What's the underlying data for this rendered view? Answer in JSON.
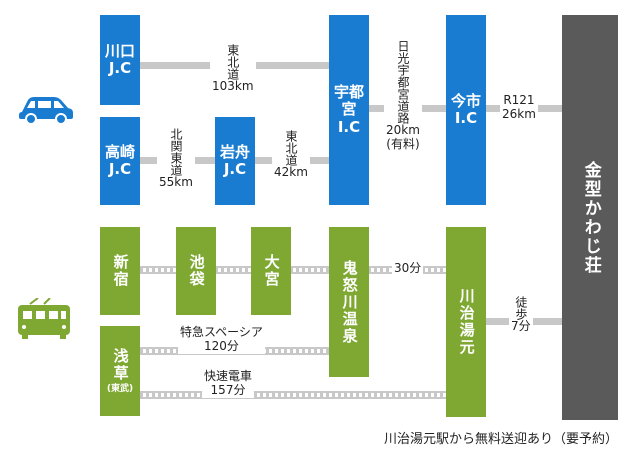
{
  "nodes": {
    "kawaguchi": {
      "l1": "川口",
      "l2": "J.C"
    },
    "takasaki": {
      "l1": "高崎",
      "l2": "J.C"
    },
    "iwafune": {
      "l1": "岩舟",
      "l2": "J.C"
    },
    "utsunomiya": {
      "l1": "宇都宮",
      "l2": "I.C"
    },
    "imaichi": {
      "l1": "今市",
      "l2": "I.C"
    },
    "kinugawa_hotel": "金型かわじ荘",
    "shinjuku": "新宿",
    "ikebukuro": "池袋",
    "omiya": "大宮",
    "kinugawa_onsen": "鬼怒川温泉",
    "kawaji_yumoto": "川治湯元",
    "asakusa": {
      "name": "浅草",
      "sub": "(東武)"
    }
  },
  "routes": {
    "tohoku_main": {
      "name": "東北道",
      "dist": "103km"
    },
    "kitakanto": {
      "name": "北関東道",
      "dist": "55km"
    },
    "tohoku_sub": {
      "name": "東北道",
      "dist": "42km"
    },
    "nikko": {
      "name": "日光宇都宮道路",
      "dist": "20km",
      "note": "(有料)"
    },
    "r121": {
      "name": "R121",
      "dist": "26km"
    },
    "rail_kinugawa": {
      "time": "30分"
    },
    "walk": {
      "name": "徒歩",
      "time": "7分"
    },
    "spacia": {
      "name": "特急スペーシア",
      "time": "120分"
    },
    "rapid": {
      "name": "快速電車",
      "time": "157分"
    }
  },
  "footer": {
    "note": "川治湯元駅から無料送迎あり（要予約）"
  },
  "icons": {
    "car": "car-icon",
    "train": "train-icon"
  },
  "colors": {
    "road_blue": "#1a7cd0",
    "rail_green": "#7fa833",
    "dest_gray": "#5a5a5a",
    "line_gray": "#c8c8c8"
  }
}
